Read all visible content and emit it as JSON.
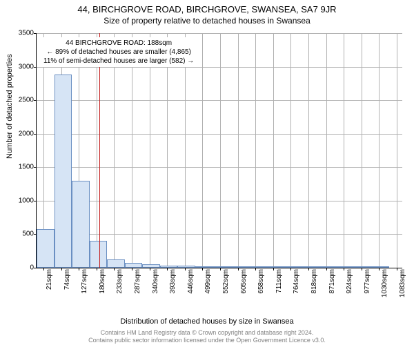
{
  "title_main": "44, BIRCHGROVE ROAD, BIRCHGROVE, SWANSEA, SA7 9JR",
  "title_sub": "Size of property relative to detached houses in Swansea",
  "y_axis_label": "Number of detached properties",
  "x_axis_label": "Distribution of detached houses by size in Swansea",
  "footer_line1": "Contains HM Land Registry data © Crown copyright and database right 2024.",
  "footer_line2": "Contains public sector information licensed under the Open Government Licence v3.0.",
  "info_line1": "44 BIRCHGROVE ROAD: 188sqm",
  "info_line2": "← 89% of detached houses are smaller (4,865)",
  "info_line3": "11% of semi-detached houses are larger (582) →",
  "marker_sqm": 188,
  "chart": {
    "type": "histogram",
    "bar_fill": "#d6e4f5",
    "bar_stroke": "#6a8fc2",
    "grid_color": "#b0b0b0",
    "marker_color": "#c32020",
    "background": "#ffffff",
    "ylim": [
      0,
      3500
    ],
    "yticks": [
      0,
      500,
      1000,
      1500,
      2000,
      2500,
      3000,
      3500
    ],
    "xlim": [
      0,
      1100
    ],
    "xticks": [
      21,
      74,
      127,
      180,
      233,
      287,
      340,
      393,
      446,
      499,
      552,
      605,
      658,
      711,
      764,
      818,
      871,
      924,
      977,
      1030,
      1083
    ],
    "xtick_suffix": "sqm",
    "bin_width_sqm": 53,
    "bins": [
      {
        "start": 0,
        "count": 580
      },
      {
        "start": 53,
        "count": 2880
      },
      {
        "start": 106,
        "count": 1300
      },
      {
        "start": 159,
        "count": 400
      },
      {
        "start": 212,
        "count": 120
      },
      {
        "start": 265,
        "count": 70
      },
      {
        "start": 318,
        "count": 50
      },
      {
        "start": 371,
        "count": 35
      },
      {
        "start": 424,
        "count": 28
      },
      {
        "start": 477,
        "count": 20
      },
      {
        "start": 530,
        "count": 10
      },
      {
        "start": 583,
        "count": 8
      },
      {
        "start": 636,
        "count": 5
      },
      {
        "start": 689,
        "count": 4
      },
      {
        "start": 742,
        "count": 3
      },
      {
        "start": 795,
        "count": 2
      },
      {
        "start": 848,
        "count": 2
      },
      {
        "start": 901,
        "count": 1
      },
      {
        "start": 954,
        "count": 1
      },
      {
        "start": 1007,
        "count": 1
      }
    ]
  }
}
